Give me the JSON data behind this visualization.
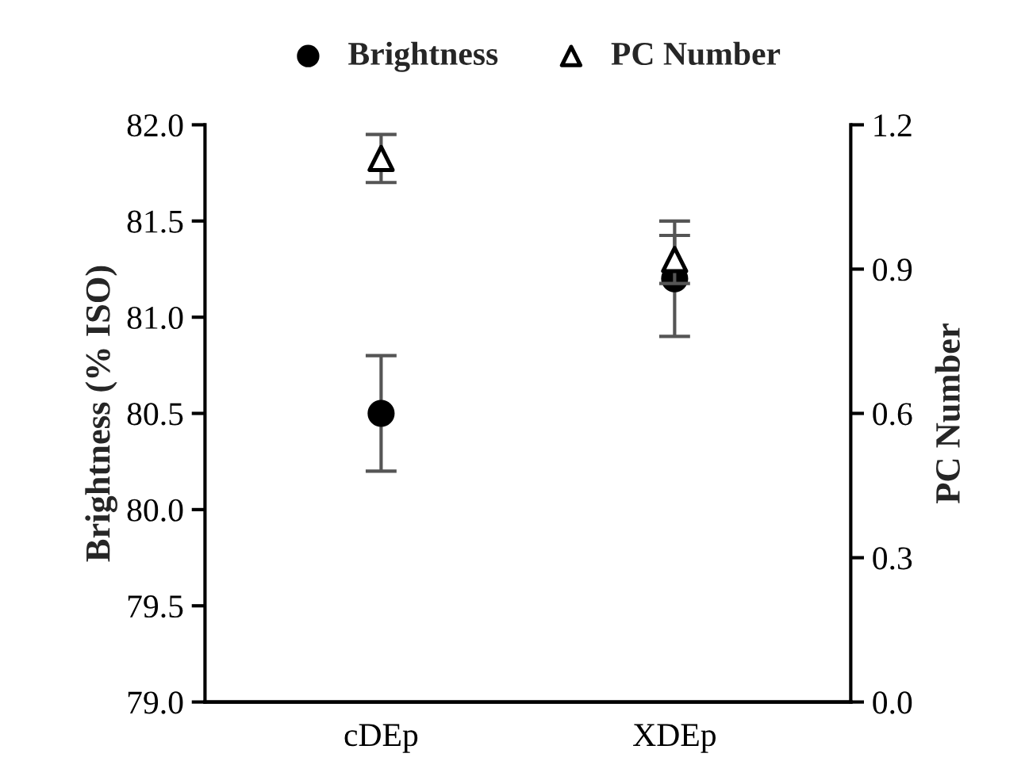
{
  "chart_data": {
    "type": "scatter",
    "categories": [
      "cDEp",
      "XDEp"
    ],
    "ylabel": "Brightness (% ISO)",
    "y2label": "PC Number",
    "ylim": [
      79.0,
      82.0
    ],
    "yticks": [
      {
        "value": 79.0,
        "label": "79.0"
      },
      {
        "value": 79.5,
        "label": "79.5"
      },
      {
        "value": 80.0,
        "label": "80.0"
      },
      {
        "value": 80.5,
        "label": "80.5"
      },
      {
        "value": 81.0,
        "label": "81.0"
      },
      {
        "value": 81.5,
        "label": "81.5"
      },
      {
        "value": 82.0,
        "label": "82.0"
      }
    ],
    "y2lim": [
      0.0,
      1.2
    ],
    "y2ticks": [
      {
        "value": 0.0,
        "label": "0.0"
      },
      {
        "value": 0.3,
        "label": "0.3"
      },
      {
        "value": 0.6,
        "label": "0.6"
      },
      {
        "value": 0.9,
        "label": "0.9"
      },
      {
        "value": 1.2,
        "label": "1.2"
      }
    ],
    "legend": "top",
    "grid": false,
    "series": [
      {
        "name": "Brightness",
        "color": "#000000",
        "marker": "circle",
        "values": [
          80.5,
          81.2
        ],
        "errors": [
          0.3,
          0.3
        ]
      },
      {
        "name": "PC Number",
        "color": "#000000",
        "marker": "triangle",
        "axis": "y2",
        "values": [
          1.13,
          0.92
        ],
        "errors": [
          0.05,
          0.05
        ]
      }
    ]
  }
}
